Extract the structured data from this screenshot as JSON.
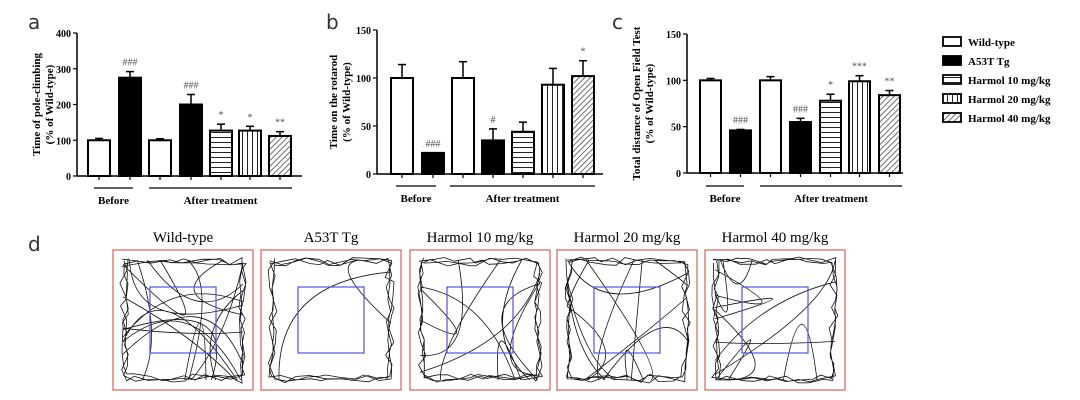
{
  "legend": {
    "items": [
      {
        "label": "Wild-type",
        "pattern": "white"
      },
      {
        "label": "A53T Tg",
        "pattern": "black"
      },
      {
        "label": "Harmol 10 mg/kg",
        "pattern": "horizontal"
      },
      {
        "label": "Harmol 20 mg/kg",
        "pattern": "vertical"
      },
      {
        "label": "Harmol 40 mg/kg",
        "pattern": "diagonal"
      }
    ]
  },
  "chart_data": [
    {
      "panel": "a",
      "type": "bar",
      "ylabel": "Time of pole-climbing\n(% of Wild-type)",
      "ylim": [
        0,
        400
      ],
      "yticks": [
        0,
        100,
        200,
        300,
        400
      ],
      "groups": [
        "Before",
        "After treatment"
      ],
      "bars": [
        {
          "group": "Before",
          "series": "Wild-type",
          "value": 100,
          "error": 5,
          "annotation": ""
        },
        {
          "group": "Before",
          "series": "A53T Tg",
          "value": 275,
          "error": 17,
          "annotation": "###"
        },
        {
          "group": "After treatment",
          "series": "Wild-type",
          "value": 100,
          "error": 4,
          "annotation": ""
        },
        {
          "group": "After treatment",
          "series": "A53T Tg",
          "value": 200,
          "error": 28,
          "annotation": "###"
        },
        {
          "group": "After treatment",
          "series": "Harmol 10 mg/kg",
          "value": 127,
          "error": 18,
          "annotation": "*"
        },
        {
          "group": "After treatment",
          "series": "Harmol 20 mg/kg",
          "value": 127,
          "error": 12,
          "annotation": "*"
        },
        {
          "group": "After treatment",
          "series": "Harmol 40 mg/kg",
          "value": 112,
          "error": 12,
          "annotation": "**"
        }
      ]
    },
    {
      "panel": "b",
      "type": "bar",
      "ylabel": "Time on the rotarod\n(% of Wild-type)",
      "ylim": [
        0,
        150
      ],
      "yticks": [
        0,
        50,
        100,
        150
      ],
      "groups": [
        "Before",
        "After treatment"
      ],
      "bars": [
        {
          "group": "Before",
          "series": "Wild-type",
          "value": 100,
          "error": 14,
          "annotation": ""
        },
        {
          "group": "Before",
          "series": "A53T Tg",
          "value": 22,
          "error": 0,
          "annotation": "###"
        },
        {
          "group": "After treatment",
          "series": "Wild-type",
          "value": 100,
          "error": 17,
          "annotation": ""
        },
        {
          "group": "After treatment",
          "series": "A53T Tg",
          "value": 35,
          "error": 12,
          "annotation": "#"
        },
        {
          "group": "After treatment",
          "series": "Harmol 10 mg/kg",
          "value": 44,
          "error": 10,
          "annotation": ""
        },
        {
          "group": "After treatment",
          "series": "Harmol 20 mg/kg",
          "value": 93,
          "error": 17,
          "annotation": ""
        },
        {
          "group": "After treatment",
          "series": "Harmol 40 mg/kg",
          "value": 102,
          "error": 16,
          "annotation": "*"
        }
      ]
    },
    {
      "panel": "c",
      "type": "bar",
      "ylabel": "Total distance of Open Field Test\n(% of Wild-type)",
      "ylim": [
        0,
        150
      ],
      "yticks": [
        0,
        50,
        100,
        150
      ],
      "groups": [
        "Before",
        "After treatment"
      ],
      "bars": [
        {
          "group": "Before",
          "series": "Wild-type",
          "value": 100,
          "error": 2,
          "annotation": ""
        },
        {
          "group": "Before",
          "series": "A53T Tg",
          "value": 46,
          "error": 1,
          "annotation": "###"
        },
        {
          "group": "After treatment",
          "series": "Wild-type",
          "value": 100,
          "error": 4,
          "annotation": ""
        },
        {
          "group": "After treatment",
          "series": "A53T Tg",
          "value": 55,
          "error": 4,
          "annotation": "###"
        },
        {
          "group": "After treatment",
          "series": "Harmol 10 mg/kg",
          "value": 78,
          "error": 7,
          "annotation": "*"
        },
        {
          "group": "After treatment",
          "series": "Harmol 20 mg/kg",
          "value": 99,
          "error": 6,
          "annotation": "***"
        },
        {
          "group": "After treatment",
          "series": "Harmol 40 mg/kg",
          "value": 84,
          "error": 5,
          "annotation": "**"
        }
      ]
    }
  ],
  "tracks": {
    "panel": "d",
    "items": [
      {
        "label": "Wild-type"
      },
      {
        "label": "A53T Tg"
      },
      {
        "label": "Harmol  10 mg/kg"
      },
      {
        "label": "Harmol  20 mg/kg"
      },
      {
        "label": "Harmol  40 mg/kg"
      }
    ],
    "border_color": "#e06a6a",
    "center_color": "#5555dd"
  }
}
